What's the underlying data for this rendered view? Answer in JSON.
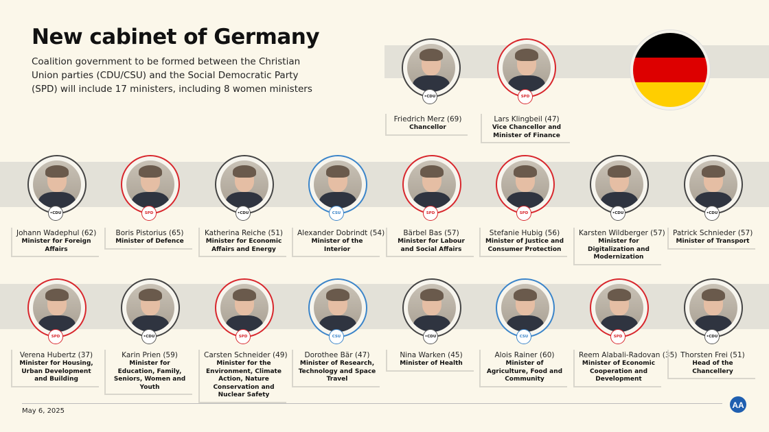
{
  "title": "New cabinet of Germany",
  "subtitle": "Coalition government to be formed between the Christian Union parties (CDU/CSU) and the Social Democratic Party (SPD) will include 17 ministers, including 8 women ministers",
  "date": "May 6, 2025",
  "flag_colors": [
    "#000000",
    "#dd0000",
    "#ffce00"
  ],
  "party_colors": {
    "CDU": "#444444",
    "SPD": "#d8262c",
    "CSU": "#3a84c9"
  },
  "top": [
    {
      "name": "Friedrich Merz (69)",
      "role": "Chancellor",
      "party": "CDU"
    },
    {
      "name": "Lars Klingbeil (47)",
      "role": "Vice Chancellor and Minister of Finance",
      "party": "SPD"
    }
  ],
  "row1": [
    {
      "name": "Johann Wadephul (62)",
      "role": "Minister for Foreign Affairs",
      "party": "CDU"
    },
    {
      "name": "Boris Pistorius (65)",
      "role": "Minister of Defence",
      "party": "SPD"
    },
    {
      "name": "Katherina Reiche (51)",
      "role": "Minister for Economic Affairs and Energy",
      "party": "CDU"
    },
    {
      "name": "Alexander Dobrindt (54)",
      "role": "Minister of the Interior",
      "party": "CSU"
    },
    {
      "name": "Bärbel Bas (57)",
      "role": "Minister for Labour and Social Affairs",
      "party": "SPD"
    },
    {
      "name": "Stefanie Hubig (56)",
      "role": "Minister of Justice and Consumer Protection",
      "party": "SPD"
    },
    {
      "name": "Karsten Wildberger (57)",
      "role": "Minister for Digitalization and Modernization",
      "party": "CDU"
    },
    {
      "name": "Patrick Schnieder (57)",
      "role": "Minister of Transport",
      "party": "CDU"
    }
  ],
  "row2": [
    {
      "name": "Verena Hubertz (37)",
      "role": "Minister for Housing, Urban Development and Building",
      "party": "SPD"
    },
    {
      "name": "Karin Prien (59)",
      "role": "Minister for Education, Family, Seniors, Women and Youth",
      "party": "CDU"
    },
    {
      "name": "Carsten Schneider (49)",
      "role": "Minister for the Environment, Climate Action, Nature Conservation and Nuclear Safety",
      "party": "SPD"
    },
    {
      "name": "Dorothee Bär (47)",
      "role": "Minister of Research, Technology and Space Travel",
      "party": "CSU"
    },
    {
      "name": "Nina Warken (45)",
      "role": "Minister of Health",
      "party": "CDU"
    },
    {
      "name": "Alois Rainer (60)",
      "role": "Minister of Agriculture, Food and Community",
      "party": "CSU"
    },
    {
      "name": "Reem Alabali-Radovan (35)",
      "role": "Minister of Economic Cooperation and Development",
      "party": "SPD"
    },
    {
      "name": "Thorsten Frei (51)",
      "role": "Head of the Chancellery",
      "party": "CDU"
    }
  ],
  "logo": "AA"
}
